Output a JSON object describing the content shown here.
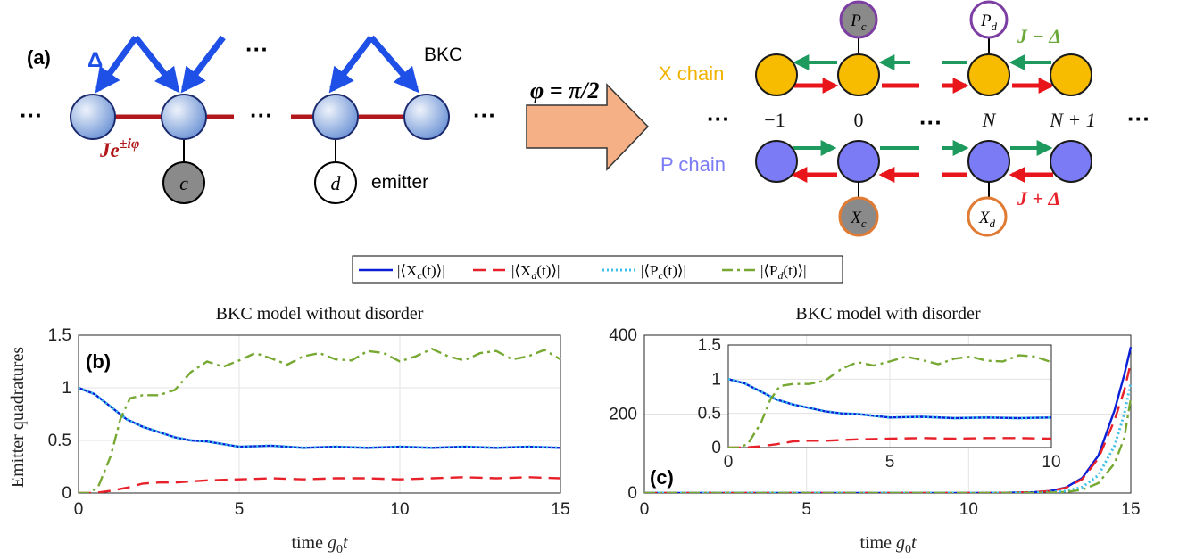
{
  "diagram_a": {
    "label": "(a)",
    "delta": "Δ",
    "bkc": "BKC",
    "hopping_J": "Je",
    "hopping_exp": "±iφ",
    "emitter_c": "c",
    "emitter_d": "d",
    "emitter_word": "emitter",
    "ellipsis": "···"
  },
  "arrow": {
    "label": "φ = π/2",
    "color": "#f5b085"
  },
  "diagram_right": {
    "x_chain": "X chain",
    "p_chain": "P chain",
    "Pc": "P",
    "Pc_sub": "c",
    "Pd": "P",
    "Pd_sub": "d",
    "Xc": "X",
    "Xc_sub": "c",
    "Xd": "X",
    "Xd_sub": "d",
    "J_minus": "J − Δ",
    "J_plus": "J + Δ",
    "site_labels": [
      "−1",
      "0",
      "N",
      "N + 1"
    ],
    "ellipsis": "···"
  },
  "legend": {
    "entries": [
      {
        "label": "|⟨X",
        "sub": "c",
        "suffix": "(t)⟩|"
      },
      {
        "label": "|⟨X",
        "sub": "d",
        "suffix": "(t)⟩|"
      },
      {
        "label": "|⟨P",
        "sub": "c",
        "suffix": "(t)⟩|"
      },
      {
        "label": "|⟨P",
        "sub": "d",
        "suffix": "(t)⟩|"
      }
    ]
  },
  "colors": {
    "Xc": "#0a1fd6",
    "Xd": "#e8202a",
    "Pc": "#3fc0ea",
    "Pd": "#76a832",
    "yellow": "#f7bb00",
    "blue_site": "#7b7cf5",
    "green_arrow": "#1e9a5e",
    "red_arrow": "#e8161b",
    "dark_red": "#b2181b",
    "arrow_blue": "#1e4fe6",
    "chain_x_text": "#f2b400",
    "chain_p_text": "#7b7cf5",
    "purple": "#7d3ea3",
    "orange": "#e07b34",
    "J_minus": "#6aa83a",
    "J_plus": "#e8202a"
  },
  "chart_data": [
    {
      "type": "line",
      "panel": "(b)",
      "title": "BKC model without disorder",
      "xlabel": "time g₀t",
      "ylabel": "Emitter quadratures",
      "xlim": [
        0,
        15
      ],
      "ylim": [
        0,
        1.5
      ],
      "xticks": [
        "0",
        "5",
        "10",
        "15"
      ],
      "yticks": [
        "0",
        "0.5",
        "1",
        "1.5"
      ],
      "grid": true,
      "series": [
        {
          "name": "|⟨Xc(t)⟩|",
          "x": [
            0,
            0.5,
            1,
            1.5,
            2,
            2.5,
            3,
            3.5,
            4,
            5,
            6,
            7,
            8,
            9,
            10,
            11,
            12,
            13,
            14,
            15
          ],
          "y": [
            1.0,
            0.94,
            0.82,
            0.7,
            0.63,
            0.58,
            0.53,
            0.5,
            0.49,
            0.44,
            0.45,
            0.43,
            0.44,
            0.43,
            0.44,
            0.43,
            0.44,
            0.43,
            0.44,
            0.43
          ]
        },
        {
          "name": "|⟨Xd(t)⟩|",
          "x": [
            0,
            0.5,
            1,
            1.5,
            2,
            2.5,
            3,
            4,
            5,
            6,
            7,
            8,
            9,
            10,
            11,
            12,
            13,
            14,
            15
          ],
          "y": [
            0,
            0,
            0.02,
            0.05,
            0.09,
            0.1,
            0.1,
            0.12,
            0.13,
            0.14,
            0.13,
            0.14,
            0.14,
            0.13,
            0.14,
            0.15,
            0.14,
            0.15,
            0.14
          ]
        },
        {
          "name": "|⟨Pc(t)⟩|",
          "x": [
            0,
            0.5,
            1,
            1.5,
            2,
            2.5,
            3,
            3.5,
            4,
            5,
            6,
            7,
            8,
            9,
            10,
            11,
            12,
            13,
            14,
            15
          ],
          "y": [
            1.0,
            0.94,
            0.82,
            0.7,
            0.63,
            0.58,
            0.53,
            0.5,
            0.49,
            0.44,
            0.45,
            0.43,
            0.44,
            0.43,
            0.44,
            0.43,
            0.44,
            0.43,
            0.44,
            0.43
          ]
        },
        {
          "name": "|⟨Pd(t)⟩|",
          "x": [
            0,
            0.3,
            0.6,
            1,
            1.3,
            1.6,
            2,
            2.5,
            3,
            3.5,
            4,
            4.5,
            5,
            5.5,
            6,
            6.5,
            7,
            7.5,
            8,
            8.5,
            9,
            9.5,
            10,
            10.5,
            11,
            11.5,
            12,
            12.5,
            13,
            13.5,
            14,
            14.5,
            15
          ],
          "y": [
            0,
            0,
            0.05,
            0.35,
            0.7,
            0.9,
            0.93,
            0.93,
            0.98,
            1.15,
            1.25,
            1.2,
            1.26,
            1.33,
            1.28,
            1.22,
            1.3,
            1.33,
            1.27,
            1.26,
            1.35,
            1.33,
            1.25,
            1.3,
            1.37,
            1.3,
            1.26,
            1.33,
            1.35,
            1.27,
            1.3,
            1.36,
            1.27
          ]
        }
      ]
    },
    {
      "type": "line",
      "panel": "(c)",
      "title": "BKC model with disorder",
      "xlabel": "time g₀t",
      "xlim": [
        0,
        15
      ],
      "ylim": [
        0,
        400
      ],
      "xticks": [
        "0",
        "5",
        "10",
        "15"
      ],
      "yticks": [
        "0",
        "200",
        "400"
      ],
      "grid": true,
      "series": [
        {
          "name": "|⟨Xc(t)⟩|",
          "x": [
            0,
            10,
            11,
            12,
            12.5,
            13,
            13.5,
            14,
            14.5,
            14.8,
            15
          ],
          "y": [
            0,
            0,
            0.5,
            2,
            5,
            14,
            38,
            95,
            210,
            300,
            370
          ]
        },
        {
          "name": "|⟨Xd(t)⟩|",
          "x": [
            0,
            10,
            11,
            12,
            12.5,
            13,
            13.5,
            14,
            14.5,
            14.8,
            15
          ],
          "y": [
            0,
            0,
            0.5,
            2,
            5,
            13,
            35,
            88,
            185,
            260,
            330
          ]
        },
        {
          "name": "|⟨Pc(t)⟩|",
          "x": [
            0,
            11,
            12,
            12.5,
            13,
            13.5,
            14,
            14.5,
            14.8,
            15
          ],
          "y": [
            0,
            0,
            1,
            2,
            5,
            15,
            45,
            120,
            200,
            280
          ]
        },
        {
          "name": "|⟨Pd(t)⟩|",
          "x": [
            0,
            11,
            12,
            12.5,
            13,
            13.5,
            14,
            14.5,
            14.8,
            15
          ],
          "y": [
            0,
            0,
            0.5,
            1,
            3,
            8,
            25,
            75,
            140,
            240
          ]
        }
      ],
      "inset": {
        "xlim": [
          0,
          10
        ],
        "ylim": [
          0,
          1.5
        ],
        "xticks": [
          "0",
          "5",
          "10"
        ],
        "yticks": [
          "0",
          "0.5",
          "1",
          "1.5"
        ],
        "series": [
          {
            "name": "|⟨Xc(t)⟩|",
            "x": [
              0,
              0.5,
              1,
              1.5,
              2,
              2.5,
              3,
              3.5,
              4,
              5,
              6,
              7,
              8,
              9,
              10
            ],
            "y": [
              1.0,
              0.94,
              0.82,
              0.7,
              0.63,
              0.58,
              0.53,
              0.5,
              0.49,
              0.44,
              0.45,
              0.43,
              0.44,
              0.43,
              0.44
            ]
          },
          {
            "name": "|⟨Xd(t)⟩|",
            "x": [
              0,
              0.5,
              1,
              1.5,
              2,
              2.5,
              3,
              4,
              5,
              6,
              7,
              8,
              9,
              10
            ],
            "y": [
              0,
              0,
              0.02,
              0.05,
              0.09,
              0.1,
              0.1,
              0.12,
              0.13,
              0.14,
              0.13,
              0.14,
              0.14,
              0.13
            ]
          },
          {
            "name": "|⟨Pc(t)⟩|",
            "x": [
              0,
              0.5,
              1,
              1.5,
              2,
              2.5,
              3,
              3.5,
              4,
              5,
              6,
              7,
              8,
              9,
              10
            ],
            "y": [
              1.0,
              0.94,
              0.82,
              0.7,
              0.63,
              0.58,
              0.53,
              0.5,
              0.49,
              0.44,
              0.45,
              0.43,
              0.44,
              0.43,
              0.44
            ]
          },
          {
            "name": "|⟨Pd(t)⟩|",
            "x": [
              0,
              0.3,
              0.6,
              1,
              1.3,
              1.6,
              2,
              2.5,
              3,
              3.5,
              4,
              4.5,
              5,
              5.5,
              6,
              6.5,
              7,
              7.5,
              8,
              8.5,
              9,
              9.5,
              10
            ],
            "y": [
              0,
              0,
              0.05,
              0.35,
              0.7,
              0.9,
              0.93,
              0.93,
              0.98,
              1.15,
              1.25,
              1.2,
              1.26,
              1.33,
              1.28,
              1.22,
              1.3,
              1.33,
              1.27,
              1.26,
              1.35,
              1.33,
              1.25
            ]
          }
        ]
      }
    }
  ]
}
